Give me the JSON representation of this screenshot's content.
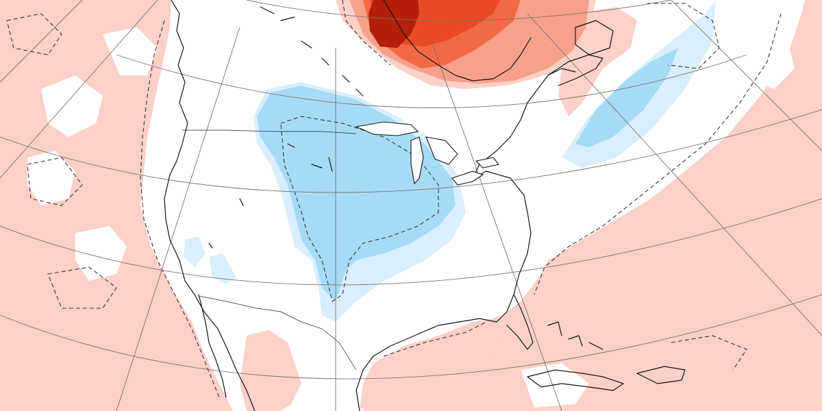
{
  "map": {
    "region": "",
    "field": "",
    "colors": {
      "background": "#ffffff",
      "warm_1": "#fdd0c8",
      "warm_2": "#f7a08a",
      "warm_3": "#f26a45",
      "warm_4": "#e94a25",
      "warm_5": "#b31f0a",
      "cool_1": "#d9efff",
      "cool_2": "#a6dbf7",
      "contour_line": "#333333",
      "coastline": "#111111",
      "graticule": "#7a7260"
    },
    "contour_style": "dashed",
    "graticule": "on"
  }
}
